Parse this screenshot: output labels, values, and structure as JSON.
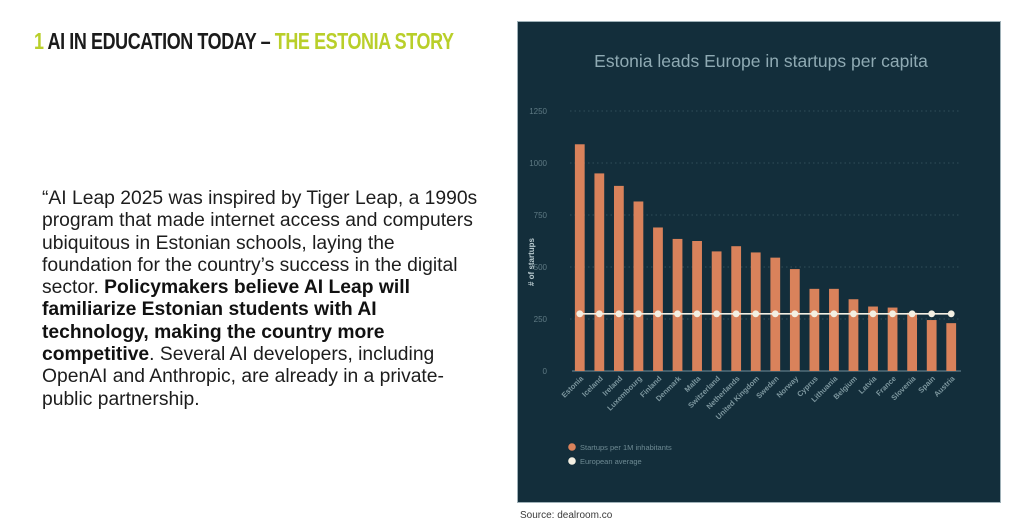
{
  "slide": {
    "title_number": "1",
    "title_main": "AI IN EDUCATION TODAY –",
    "title_accent": "THE ESTONIA STORY",
    "quote_part1": "“AI Leap 2025 was inspired by Tiger Leap, a 1990s program that made internet access and computers ubiquitous in Estonian schools, laying the foundation for the country’s success in the digital sector. ",
    "quote_bold": "Policymakers believe AI Leap will familiarize Estonian students with AI technology, making the country more competitive",
    "quote_part2": ". Several AI developers, including OpenAI and Anthropic, are already in a private-public partnership.",
    "source": "Source: dealroom.co"
  },
  "colors": {
    "title_accent": "#b9cf2a",
    "panel_bg": "#132e3b",
    "bar": "#d9825b",
    "average_line": "#f3efe2",
    "axis_text": "#5f7a84"
  },
  "chart_data": {
    "type": "bar",
    "title": "Estonia leads Europe in startups per capita",
    "xlabel": "",
    "ylabel": "# of startups",
    "ylim": [
      0,
      1250
    ],
    "yticks": [
      0,
      250,
      500,
      750,
      1000,
      1250
    ],
    "grid": true,
    "legend_position": "bottom-left",
    "categories": [
      "Estonia",
      "Iceland",
      "Ireland",
      "Luxembourg",
      "Finland",
      "Denmark",
      "Malta",
      "Switzerland",
      "Netherlands",
      "United Kingdom",
      "Sweden",
      "Norway",
      "Cyprus",
      "Lithuania",
      "Belgium",
      "Latvia",
      "France",
      "Slovenia",
      "Spain",
      "Austria"
    ],
    "series": [
      {
        "name": "Startups per 1M inhabitants",
        "type": "bar",
        "values": [
          1090,
          950,
          890,
          815,
          690,
          635,
          625,
          575,
          600,
          570,
          545,
          490,
          395,
          395,
          345,
          310,
          305,
          280,
          245,
          230
        ]
      },
      {
        "name": "European average",
        "type": "line",
        "values": [
          275,
          275,
          275,
          275,
          275,
          275,
          275,
          275,
          275,
          275,
          275,
          275,
          275,
          275,
          275,
          275,
          275,
          275,
          275,
          275
        ]
      }
    ]
  }
}
